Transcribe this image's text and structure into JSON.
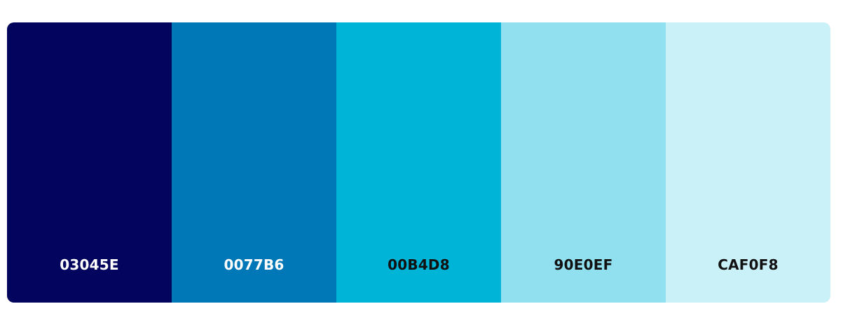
{
  "palette": {
    "swatches": [
      {
        "hex": "03045E",
        "color": "#03045E",
        "text_color": "#FFFFFF"
      },
      {
        "hex": "0077B6",
        "color": "#0077B6",
        "text_color": "#FFFFFF"
      },
      {
        "hex": "00B4D8",
        "color": "#00B4D8",
        "text_color": "#111111"
      },
      {
        "hex": "90E0EF",
        "color": "#90E0EF",
        "text_color": "#111111"
      },
      {
        "hex": "CAF0F8",
        "color": "#CAF0F8",
        "text_color": "#111111"
      }
    ]
  }
}
